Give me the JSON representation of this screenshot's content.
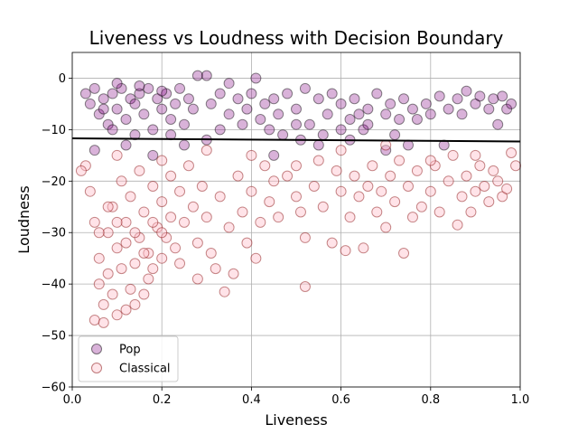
{
  "chart_data": {
    "type": "scatter",
    "title": "Liveness vs Loudness with Decision Boundary",
    "xlabel": "Liveness",
    "ylabel": "Loudness",
    "xlim": [
      0.0,
      1.0
    ],
    "ylim": [
      -60,
      5
    ],
    "xticks": [
      "0.0",
      "0.2",
      "0.4",
      "0.6",
      "0.8",
      "1.0"
    ],
    "yticks": [
      "0",
      "−10",
      "−20",
      "−30",
      "−40",
      "−50",
      "−60"
    ],
    "grid": true,
    "legend_position": "bottom-left",
    "decision_boundary": {
      "x": [
        0.0,
        1.0
      ],
      "y": [
        -11.7,
        -12.3
      ],
      "color": "#000000"
    },
    "series": [
      {
        "name": "Pop",
        "color": "#800080",
        "edge_color": "#000000",
        "points": [
          [
            0.03,
            -3
          ],
          [
            0.04,
            -5
          ],
          [
            0.05,
            -2
          ],
          [
            0.06,
            -7
          ],
          [
            0.07,
            -4
          ],
          [
            0.08,
            -9
          ],
          [
            0.09,
            -3
          ],
          [
            0.1,
            -6
          ],
          [
            0.11,
            -2
          ],
          [
            0.12,
            -8
          ],
          [
            0.13,
            -4
          ],
          [
            0.14,
            -5
          ],
          [
            0.15,
            -3
          ],
          [
            0.16,
            -7
          ],
          [
            0.17,
            -2
          ],
          [
            0.18,
            -10
          ],
          [
            0.19,
            -4
          ],
          [
            0.2,
            -6
          ],
          [
            0.21,
            -3
          ],
          [
            0.22,
            -8
          ],
          [
            0.23,
            -5
          ],
          [
            0.24,
            -2
          ],
          [
            0.25,
            -9
          ],
          [
            0.26,
            -4
          ],
          [
            0.27,
            -6
          ],
          [
            0.28,
            0.5
          ],
          [
            0.3,
            0.5
          ],
          [
            0.31,
            -5
          ],
          [
            0.33,
            -3
          ],
          [
            0.35,
            -7
          ],
          [
            0.37,
            -4
          ],
          [
            0.39,
            -6
          ],
          [
            0.4,
            -3
          ],
          [
            0.41,
            0.0
          ],
          [
            0.42,
            -8
          ],
          [
            0.43,
            -5
          ],
          [
            0.44,
            -10
          ],
          [
            0.45,
            -4
          ],
          [
            0.46,
            -7
          ],
          [
            0.48,
            -3
          ],
          [
            0.5,
            -6
          ],
          [
            0.52,
            -2
          ],
          [
            0.53,
            -9
          ],
          [
            0.55,
            -4
          ],
          [
            0.57,
            -7
          ],
          [
            0.58,
            -3
          ],
          [
            0.6,
            -5
          ],
          [
            0.62,
            -8
          ],
          [
            0.63,
            -4
          ],
          [
            0.65,
            -10
          ],
          [
            0.66,
            -6
          ],
          [
            0.68,
            -3
          ],
          [
            0.7,
            -7
          ],
          [
            0.71,
            -5
          ],
          [
            0.72,
            -11
          ],
          [
            0.74,
            -4
          ],
          [
            0.76,
            -6
          ],
          [
            0.77,
            -8
          ],
          [
            0.79,
            -5
          ],
          [
            0.8,
            -7
          ],
          [
            0.82,
            -3.5
          ],
          [
            0.83,
            -13
          ],
          [
            0.84,
            -6
          ],
          [
            0.86,
            -4
          ],
          [
            0.87,
            -7
          ],
          [
            0.88,
            -2.5
          ],
          [
            0.9,
            -5
          ],
          [
            0.91,
            -3.5
          ],
          [
            0.93,
            -6
          ],
          [
            0.94,
            -4
          ],
          [
            0.95,
            -9
          ],
          [
            0.96,
            -3.5
          ],
          [
            0.97,
            -6
          ],
          [
            0.98,
            -5
          ],
          [
            0.05,
            -14
          ],
          [
            0.12,
            -13
          ],
          [
            0.18,
            -15
          ],
          [
            0.25,
            -13
          ],
          [
            0.3,
            -12
          ],
          [
            0.45,
            -15
          ],
          [
            0.55,
            -13
          ],
          [
            0.62,
            -12
          ],
          [
            0.7,
            -14
          ],
          [
            0.75,
            -13
          ],
          [
            0.1,
            -1
          ],
          [
            0.15,
            -1.5
          ],
          [
            0.2,
            -2.5
          ],
          [
            0.35,
            -1
          ],
          [
            0.5,
            -9
          ],
          [
            0.6,
            -10
          ],
          [
            0.66,
            -9
          ],
          [
            0.73,
            -8
          ],
          [
            0.07,
            -6
          ],
          [
            0.09,
            -10
          ],
          [
            0.14,
            -11
          ],
          [
            0.22,
            -11
          ],
          [
            0.33,
            -10
          ],
          [
            0.38,
            -9
          ],
          [
            0.47,
            -11
          ],
          [
            0.51,
            -12
          ],
          [
            0.56,
            -11
          ],
          [
            0.64,
            -7
          ]
        ]
      },
      {
        "name": "Classical",
        "color": "#ffc0cb",
        "edge_color": "#800000",
        "points": [
          [
            0.03,
            -17
          ],
          [
            0.04,
            -22
          ],
          [
            0.05,
            -28
          ],
          [
            0.05,
            -47
          ],
          [
            0.06,
            -35
          ],
          [
            0.06,
            -40
          ],
          [
            0.07,
            -44
          ],
          [
            0.07,
            -47.5
          ],
          [
            0.08,
            -30
          ],
          [
            0.08,
            -38
          ],
          [
            0.09,
            -42
          ],
          [
            0.09,
            -25
          ],
          [
            0.1,
            -33
          ],
          [
            0.1,
            -46
          ],
          [
            0.11,
            -20
          ],
          [
            0.11,
            -37
          ],
          [
            0.12,
            -45
          ],
          [
            0.12,
            -28
          ],
          [
            0.13,
            -41
          ],
          [
            0.13,
            -23
          ],
          [
            0.14,
            -36
          ],
          [
            0.14,
            -44
          ],
          [
            0.15,
            -31
          ],
          [
            0.15,
            -18
          ],
          [
            0.16,
            -42
          ],
          [
            0.16,
            -26
          ],
          [
            0.17,
            -39
          ],
          [
            0.17,
            -34
          ],
          [
            0.18,
            -21
          ],
          [
            0.18,
            -37
          ],
          [
            0.19,
            -29
          ],
          [
            0.2,
            -35
          ],
          [
            0.2,
            -24
          ],
          [
            0.21,
            -31
          ],
          [
            0.22,
            -19
          ],
          [
            0.22,
            -27
          ],
          [
            0.23,
            -33
          ],
          [
            0.24,
            -22
          ],
          [
            0.24,
            -36
          ],
          [
            0.25,
            -28
          ],
          [
            0.26,
            -17
          ],
          [
            0.27,
            -25
          ],
          [
            0.28,
            -32
          ],
          [
            0.28,
            -39
          ],
          [
            0.29,
            -21
          ],
          [
            0.3,
            -27
          ],
          [
            0.31,
            -34
          ],
          [
            0.32,
            -37
          ],
          [
            0.33,
            -23
          ],
          [
            0.34,
            -41.5
          ],
          [
            0.35,
            -29
          ],
          [
            0.36,
            -38
          ],
          [
            0.37,
            -19
          ],
          [
            0.38,
            -26
          ],
          [
            0.39,
            -32
          ],
          [
            0.4,
            -22
          ],
          [
            0.41,
            -35
          ],
          [
            0.42,
            -28
          ],
          [
            0.43,
            -17
          ],
          [
            0.44,
            -24
          ],
          [
            0.45,
            -20
          ],
          [
            0.46,
            -27
          ],
          [
            0.48,
            -19
          ],
          [
            0.5,
            -23
          ],
          [
            0.51,
            -26
          ],
          [
            0.52,
            -31
          ],
          [
            0.52,
            -40.5
          ],
          [
            0.54,
            -21
          ],
          [
            0.55,
            -16
          ],
          [
            0.56,
            -25
          ],
          [
            0.58,
            -32
          ],
          [
            0.59,
            -18
          ],
          [
            0.6,
            -22
          ],
          [
            0.61,
            -33.5
          ],
          [
            0.62,
            -27
          ],
          [
            0.63,
            -19
          ],
          [
            0.64,
            -23
          ],
          [
            0.65,
            -33
          ],
          [
            0.66,
            -21
          ],
          [
            0.67,
            -17
          ],
          [
            0.68,
            -26
          ],
          [
            0.69,
            -22
          ],
          [
            0.7,
            -29
          ],
          [
            0.71,
            -19
          ],
          [
            0.72,
            -24
          ],
          [
            0.73,
            -16
          ],
          [
            0.74,
            -34
          ],
          [
            0.75,
            -21
          ],
          [
            0.76,
            -27
          ],
          [
            0.77,
            -18
          ],
          [
            0.78,
            -25
          ],
          [
            0.8,
            -22
          ],
          [
            0.81,
            -17
          ],
          [
            0.82,
            -26
          ],
          [
            0.84,
            -20
          ],
          [
            0.85,
            -15
          ],
          [
            0.86,
            -28.5
          ],
          [
            0.87,
            -23
          ],
          [
            0.88,
            -19
          ],
          [
            0.89,
            -26
          ],
          [
            0.9,
            -22
          ],
          [
            0.91,
            -17
          ],
          [
            0.92,
            -21
          ],
          [
            0.93,
            -24
          ],
          [
            0.94,
            -18
          ],
          [
            0.95,
            -20
          ],
          [
            0.96,
            -23
          ],
          [
            0.97,
            -21.5
          ],
          [
            0.98,
            -14.5
          ],
          [
            0.99,
            -17
          ],
          [
            0.02,
            -18
          ],
          [
            0.1,
            -15
          ],
          [
            0.2,
            -16
          ],
          [
            0.3,
            -14
          ],
          [
            0.4,
            -15
          ],
          [
            0.5,
            -17
          ],
          [
            0.6,
            -14
          ],
          [
            0.7,
            -13
          ],
          [
            0.8,
            -16
          ],
          [
            0.9,
            -15
          ],
          [
            0.06,
            -30
          ],
          [
            0.08,
            -25
          ],
          [
            0.1,
            -28
          ],
          [
            0.12,
            -32
          ],
          [
            0.14,
            -30
          ],
          [
            0.16,
            -34
          ],
          [
            0.18,
            -28
          ],
          [
            0.2,
            -30
          ]
        ]
      }
    ]
  }
}
